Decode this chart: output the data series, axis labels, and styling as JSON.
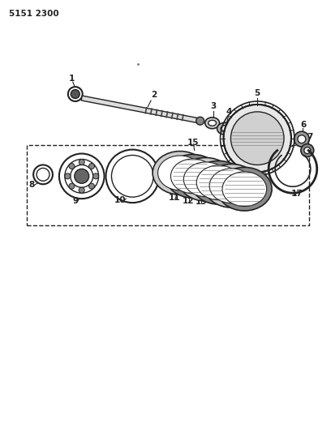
{
  "part_number": "5151 2300",
  "bg_color": "#ffffff",
  "line_color": "#222222",
  "fig_width": 4.08,
  "fig_height": 5.33,
  "dpi": 100
}
